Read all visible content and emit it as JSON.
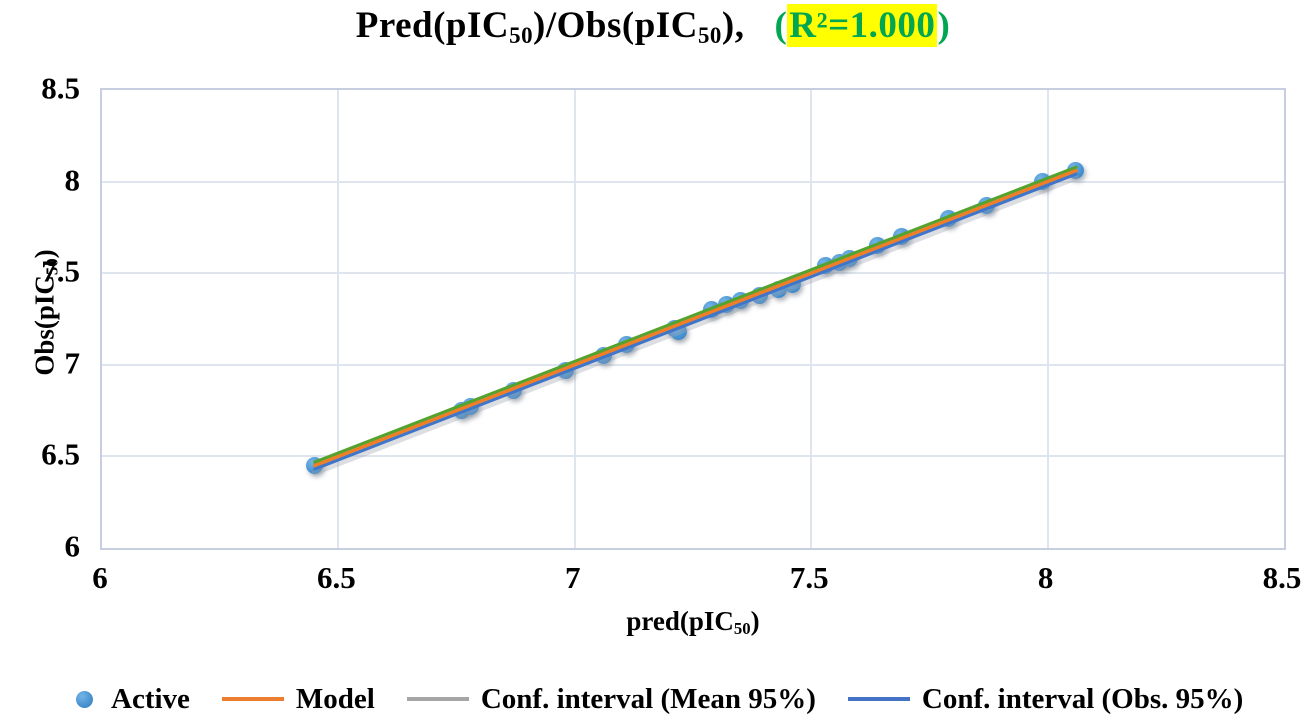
{
  "title": {
    "p1": "Pred(pIC",
    "sub1": "50",
    "p2": ")/Obs(pIC",
    "sub2": "50",
    "p3": "),",
    "r2_open": "(",
    "r2_value": "R²=1.000",
    "r2_close": ")",
    "r2_text_color": "#00A651",
    "r2_highlight_color": "#FFFF00"
  },
  "axes": {
    "x_title_main": "pred(pIC",
    "x_title_sub": "50",
    "x_title_close": ")",
    "y_title_main": "Obs(pIC",
    "y_title_sub": "50",
    "y_title_close": ")",
    "x_ticks": [
      6,
      6.5,
      7,
      7.5,
      8,
      8.5
    ],
    "y_ticks": [
      6,
      6.5,
      7,
      7.5,
      8,
      8.5
    ],
    "x_range": [
      6,
      8.5
    ],
    "y_range": [
      6,
      8.5
    ]
  },
  "legend": {
    "items": [
      {
        "label": "Active",
        "marker": "dot",
        "color": "#4E9BD4"
      },
      {
        "label": "Model",
        "marker": "line",
        "color": "#ED7D31"
      },
      {
        "label": "Conf. interval (Mean 95%)",
        "marker": "line",
        "color": "#A6A6A6"
      },
      {
        "label": "Conf. interval (Obs. 95%)",
        "marker": "line",
        "color": "#4472C4"
      }
    ]
  },
  "chart_data": {
    "type": "scatter",
    "title": "Pred(pIC50)/Obs(pIC50), (R²=1.000)",
    "xlabel": "pred(pIC50)",
    "ylabel": "Obs(pIC50)",
    "xlim": [
      6,
      8.5
    ],
    "ylim": [
      6,
      8.5
    ],
    "grid": true,
    "legend_position": "bottom",
    "r_squared": "1.000",
    "gridline_color": "#dfe5ef",
    "border_color": "#c6cedf",
    "series": [
      {
        "name": "Active",
        "type": "scatter",
        "color": "#4E9BD4",
        "points": [
          [
            6.45,
            6.45
          ],
          [
            6.76,
            6.75
          ],
          [
            6.78,
            6.77
          ],
          [
            6.87,
            6.86
          ],
          [
            6.98,
            6.97
          ],
          [
            7.06,
            7.05
          ],
          [
            7.11,
            7.11
          ],
          [
            7.21,
            7.2
          ],
          [
            7.22,
            7.18
          ],
          [
            7.29,
            7.3
          ],
          [
            7.32,
            7.33
          ],
          [
            7.35,
            7.35
          ],
          [
            7.39,
            7.38
          ],
          [
            7.43,
            7.41
          ],
          [
            7.46,
            7.44
          ],
          [
            7.53,
            7.54
          ],
          [
            7.56,
            7.56
          ],
          [
            7.58,
            7.58
          ],
          [
            7.64,
            7.65
          ],
          [
            7.69,
            7.7
          ],
          [
            7.79,
            7.8
          ],
          [
            7.87,
            7.87
          ],
          [
            7.99,
            8.0
          ],
          [
            8.06,
            8.06
          ]
        ]
      },
      {
        "name": "Model",
        "type": "line",
        "color": "#ED7D31",
        "plot_color": "#F07E27",
        "x": [
          6.45,
          8.06
        ],
        "y": [
          6.45,
          8.06
        ]
      },
      {
        "name": "Conf. interval (Mean 95%)",
        "type": "line",
        "color": "#A6A6A6",
        "plot_color": "#54A32E",
        "x": [
          6.45,
          8.06
        ],
        "y": [
          6.46,
          8.07
        ]
      },
      {
        "name": "Conf. interval (Obs. 95%)",
        "type": "line",
        "color": "#4472C4",
        "plot_color": "#3F76C9",
        "x": [
          6.45,
          8.06
        ],
        "y": [
          6.44,
          8.05
        ]
      }
    ]
  }
}
